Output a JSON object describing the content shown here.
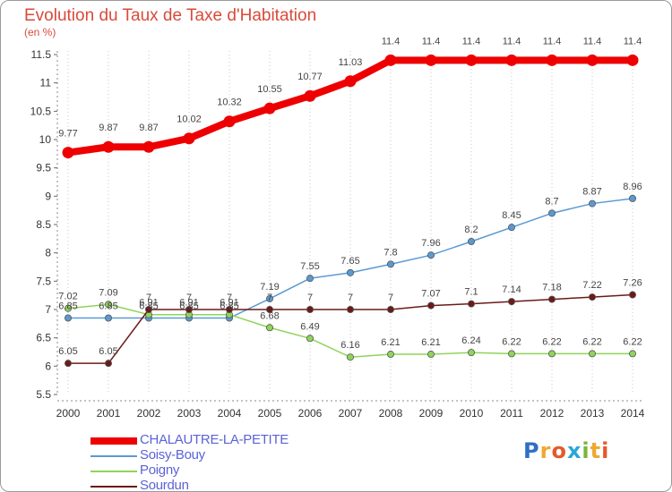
{
  "title": "Evolution du Taux de Taxe d'Habitation",
  "subtitle": "(en %)",
  "brand": {
    "letters": [
      "P",
      "r",
      "o",
      "x",
      "i",
      "t",
      "i"
    ]
  },
  "chart_data": {
    "type": "line",
    "title": "Evolution du Taux de Taxe d'Habitation",
    "ylabel": "(en %)",
    "xlabel": "",
    "x": [
      "2000",
      "2001",
      "2002",
      "2003",
      "2004",
      "2005",
      "2006",
      "2007",
      "2008",
      "2009",
      "2010",
      "2011",
      "2012",
      "2013",
      "2014"
    ],
    "ylim": [
      5.5,
      11.5
    ],
    "yticks": [
      "5.5",
      "6",
      "6.5",
      "7",
      "7.5",
      "8",
      "8.5",
      "9",
      "9.5",
      "10",
      "10.5",
      "11",
      "11.5"
    ],
    "legend_position": "bottom-left",
    "series": [
      {
        "name": "CHALAUTRE-LA-PETITE",
        "color": "#ee0000",
        "values": [
          9.77,
          9.87,
          9.87,
          10.02,
          10.32,
          10.55,
          10.77,
          11.03,
          11.4,
          11.4,
          11.4,
          11.4,
          11.4,
          11.4,
          11.4
        ],
        "labels": [
          "9.77",
          "9.87",
          "9.87",
          "10.02",
          "10.32",
          "10.55",
          "10.77",
          "11.03",
          "11.4",
          "11.4",
          "11.4",
          "11.4",
          "11.4",
          "11.4",
          "11.4"
        ]
      },
      {
        "name": "Soisy-Bouy",
        "color": "#5a9ad2",
        "values": [
          6.85,
          6.85,
          6.85,
          6.85,
          6.85,
          7.19,
          7.55,
          7.65,
          7.8,
          7.96,
          8.2,
          8.45,
          8.7,
          8.87,
          8.96
        ],
        "labels": [
          "6.85",
          "6.85",
          "6.85",
          "6.85",
          "6.85",
          "7.19",
          "7.55",
          "7.65",
          "7.8",
          "7.96",
          "8.2",
          "8.45",
          "8.7",
          "8.87",
          "8.96"
        ]
      },
      {
        "name": "Poigny",
        "color": "#8fd45a",
        "values": [
          7.02,
          7.09,
          6.91,
          6.91,
          6.91,
          6.68,
          6.49,
          6.16,
          6.21,
          6.21,
          6.24,
          6.22,
          6.22,
          6.22,
          6.22
        ],
        "labels": [
          "7.02",
          "7.09",
          "6.91",
          "6.91",
          "6.91",
          "6.68",
          "6.49",
          "6.16",
          "6.21",
          "6.21",
          "6.24",
          "6.22",
          "6.22",
          "6.22",
          "6.22"
        ]
      },
      {
        "name": "Sourdun",
        "color": "#6b1a1a",
        "values": [
          6.05,
          6.05,
          7,
          7,
          7,
          7,
          7,
          7,
          7,
          7.07,
          7.1,
          7.14,
          7.18,
          7.22,
          7.26
        ],
        "labels": [
          "6.05",
          "6.05",
          "7",
          "7",
          "7",
          "7",
          "7",
          "7",
          "7",
          "7.07",
          "7.1",
          "7.14",
          "7.18",
          "7.22",
          "7.26"
        ]
      }
    ]
  }
}
